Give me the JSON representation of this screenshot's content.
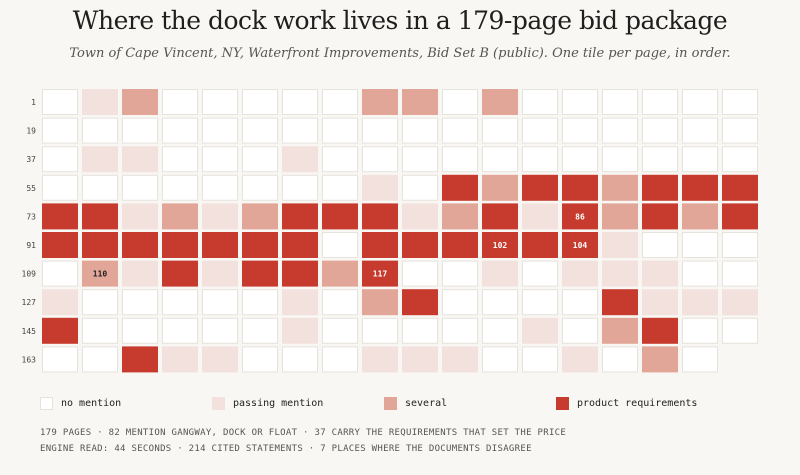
{
  "title": "Where the dock work lives in a 179-page bid package",
  "subtitle": "Town of Cape Vincent, NY, Waterfront Improvements, Bid Set B (public). One tile per page, in order.",
  "colors": {
    "none": "#ffffff",
    "passing": "#f2e1dd",
    "several": "#e2a699",
    "requirements": "#c73b2e",
    "tile_border": "#e6e2dc",
    "background": "#f9f7f3"
  },
  "legend": [
    {
      "level": 0,
      "label": "no mention"
    },
    {
      "level": 1,
      "label": "passing mention"
    },
    {
      "level": 2,
      "label": "several"
    },
    {
      "level": 3,
      "label": "product requirements"
    }
  ],
  "stats": {
    "line1": "179 PAGES  ·  82 MENTION GANGWAY, DOCK OR FLOAT  ·  37 CARRY THE REQUIREMENTS THAT SET THE PRICE",
    "line2": "ENGINE READ: 44 SECONDS  ·  214 CITED STATEMENTS  ·  7 PLACES WHERE THE DOCUMENTS DISAGREE"
  },
  "chart_data": {
    "type": "heatmap",
    "total_pages": 179,
    "columns": 18,
    "row_labels": [
      "1",
      "19",
      "37",
      "55",
      "73",
      "91",
      "109",
      "127",
      "145",
      "163"
    ],
    "level_names": [
      "no mention",
      "passing mention",
      "several",
      "product requirements"
    ],
    "levels": [
      0,
      1,
      2,
      0,
      0,
      0,
      0,
      0,
      2,
      2,
      0,
      2,
      0,
      0,
      0,
      0,
      0,
      0,
      0,
      0,
      0,
      0,
      0,
      0,
      0,
      0,
      0,
      0,
      0,
      0,
      0,
      0,
      0,
      0,
      0,
      0,
      0,
      1,
      1,
      0,
      0,
      0,
      1,
      0,
      0,
      0,
      0,
      0,
      0,
      0,
      0,
      0,
      0,
      0,
      0,
      0,
      0,
      0,
      0,
      0,
      0,
      0,
      1,
      0,
      3,
      2,
      3,
      3,
      2,
      3,
      3,
      3,
      3,
      3,
      1,
      2,
      1,
      2,
      3,
      3,
      3,
      1,
      2,
      3,
      1,
      3,
      2,
      3,
      2,
      3,
      3,
      3,
      3,
      3,
      3,
      3,
      3,
      0,
      3,
      3,
      3,
      3,
      3,
      3,
      1,
      0,
      0,
      0,
      0,
      2,
      1,
      3,
      1,
      3,
      3,
      2,
      3,
      0,
      0,
      1,
      0,
      1,
      1,
      1,
      0,
      0,
      1,
      0,
      0,
      0,
      0,
      0,
      1,
      0,
      2,
      3,
      0,
      0,
      0,
      0,
      3,
      1,
      1,
      1,
      3,
      0,
      0,
      0,
      0,
      0,
      1,
      0,
      0,
      0,
      0,
      0,
      1,
      0,
      2,
      3,
      0,
      0,
      0,
      0,
      3,
      1,
      1,
      0,
      0,
      0,
      1,
      1,
      1,
      0,
      0,
      1,
      0,
      2,
      0
    ],
    "annotations": [
      {
        "page": 86,
        "label": "86"
      },
      {
        "page": 102,
        "label": "102"
      },
      {
        "page": 104,
        "label": "104"
      },
      {
        "page": 110,
        "label": "110"
      },
      {
        "page": 117,
        "label": "117"
      }
    ]
  }
}
